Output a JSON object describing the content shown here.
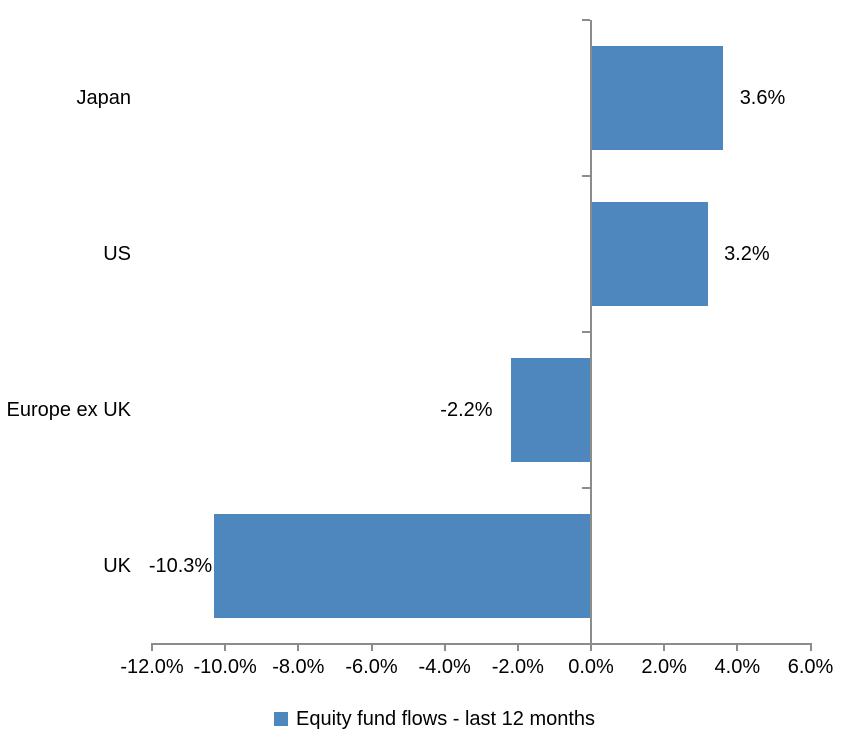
{
  "chart_data": {
    "type": "bar",
    "orientation": "horizontal",
    "categories": [
      "Japan",
      "US",
      "Europe ex UK",
      "UK"
    ],
    "values": [
      3.6,
      3.2,
      -2.2,
      -10.3
    ],
    "data_labels": [
      "3.6%",
      "3.2%",
      "-2.2%",
      "-10.3%"
    ],
    "legend": "Equity fund flows - last 12 months",
    "legend_position": "bottom",
    "xlim": [
      -12,
      6
    ],
    "xticks": [
      -12,
      -10,
      -8,
      -6,
      -4,
      -2,
      0,
      2,
      4,
      6
    ],
    "xtick_labels": [
      "-12.0%",
      "-10.0%",
      "-8.0%",
      "-6.0%",
      "-4.0%",
      "-2.0%",
      "0.0%",
      "2.0%",
      "4.0%",
      "6.0%"
    ],
    "grid": false,
    "colors": {
      "bar": "#4E86BE",
      "axis": "#8C8C8C",
      "text": "#000000",
      "background": "#FFFFFF"
    }
  }
}
